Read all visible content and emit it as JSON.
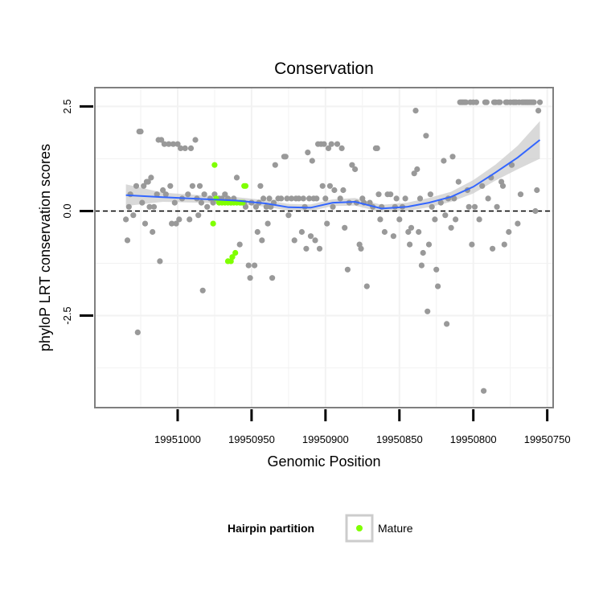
{
  "chart_data": {
    "type": "scatter",
    "title": "Conservation",
    "xlabel": "Genomic Position",
    "ylabel": "phyloP LRT conservation scores",
    "x_reversed": true,
    "xlim": [
      19951056,
      19950746
    ],
    "ylim": [
      -4.7,
      2.95
    ],
    "x_ticks": [
      19951000,
      19950950,
      19950900,
      19950850,
      19950800,
      19950750
    ],
    "x_tick_labels": [
      "19951000",
      "19950950",
      "19950900",
      "19950850",
      "19950800",
      "19950750"
    ],
    "y_ticks": [
      2.5,
      0,
      -2.5
    ],
    "y_tick_labels": [
      "2.5",
      "0.0",
      "-2.5"
    ],
    "reference_line": 0,
    "legend": {
      "title": "Hairpin partition",
      "entries": [
        "Mature"
      ],
      "position": "bottom"
    },
    "colors": {
      "other": "#999999",
      "mature": "#7fff00",
      "smooth": "#3366ff",
      "ribbon": "#cccccc",
      "grid": "#f2f2f2",
      "panel_border": "#7f7f7f"
    },
    "series": [
      {
        "name": "Other",
        "points": [
          [
            19951035,
            -0.2
          ],
          [
            19951034,
            -0.7
          ],
          [
            19951033,
            0.1
          ],
          [
            19951032,
            0.4
          ],
          [
            19951030,
            -0.1
          ],
          [
            19951028,
            0.6
          ],
          [
            19951027,
            -2.9
          ],
          [
            19951026,
            1.9
          ],
          [
            19951025,
            1.9
          ],
          [
            19951024,
            0.2
          ],
          [
            19951023,
            0.6
          ],
          [
            19951022,
            -0.3
          ],
          [
            19951021,
            0.7
          ],
          [
            19951020,
            0.7
          ],
          [
            19951019,
            0.1
          ],
          [
            19951018,
            0.8
          ],
          [
            19951017,
            -0.5
          ],
          [
            19951016,
            0.1
          ],
          [
            19951014,
            0.4
          ],
          [
            19951013,
            1.7
          ],
          [
            19951012,
            -1.2
          ],
          [
            19951011,
            1.7
          ],
          [
            19951010,
            0.5
          ],
          [
            19951009,
            1.6
          ],
          [
            19951008,
            0.4
          ],
          [
            19951006,
            1.6
          ],
          [
            19951005,
            0.6
          ],
          [
            19951004,
            -0.3
          ],
          [
            19951003,
            1.6
          ],
          [
            19951002,
            0.2
          ],
          [
            19951001,
            -0.3
          ],
          [
            19951000,
            1.6
          ],
          [
            19950999,
            -0.2
          ],
          [
            19950998,
            1.5
          ],
          [
            19950997,
            0.3
          ],
          [
            19950995,
            1.5
          ],
          [
            19950993,
            0.4
          ],
          [
            19950992,
            -0.2
          ],
          [
            19950991,
            1.5
          ],
          [
            19950990,
            0.6
          ],
          [
            19950988,
            1.7
          ],
          [
            19950987,
            0.3
          ],
          [
            19950986,
            -0.1
          ],
          [
            19950985,
            0.6
          ],
          [
            19950984,
            0.2
          ],
          [
            19950983,
            -1.9
          ],
          [
            19950982,
            0.4
          ],
          [
            19950980,
            0.1
          ],
          [
            19950978,
            0.3
          ],
          [
            19950976,
            0.2
          ],
          [
            19950975,
            0.4
          ],
          [
            19950972,
            0.3
          ],
          [
            19950970,
            0.3
          ],
          [
            19950968,
            0.4
          ],
          [
            19950966,
            0.3
          ],
          [
            19950964,
            0.2
          ],
          [
            19950962,
            0.3
          ],
          [
            19950960,
            0.8
          ],
          [
            19950958,
            -0.8
          ],
          [
            19950957,
            0.2
          ],
          [
            19950955,
            0.2
          ],
          [
            19950954,
            0.1
          ],
          [
            19950952,
            -1.3
          ],
          [
            19950951,
            -1.6
          ],
          [
            19950950,
            0.2
          ],
          [
            19950948,
            -1.3
          ],
          [
            19950947,
            0.1
          ],
          [
            19950946,
            -0.5
          ],
          [
            19950945,
            0.2
          ],
          [
            19950944,
            0.6
          ],
          [
            19950943,
            -0.7
          ],
          [
            19950942,
            0.3
          ],
          [
            19950940,
            0.1
          ],
          [
            19950939,
            -0.3
          ],
          [
            19950938,
            0.3
          ],
          [
            19950937,
            0.1
          ],
          [
            19950936,
            -1.6
          ],
          [
            19950935,
            0.2
          ],
          [
            19950934,
            1.1
          ],
          [
            19950932,
            0.3
          ],
          [
            19950930,
            0.3
          ],
          [
            19950928,
            1.3
          ],
          [
            19950927,
            1.3
          ],
          [
            19950926,
            0.3
          ],
          [
            19950925,
            -0.1
          ],
          [
            19950923,
            0.3
          ],
          [
            19950921,
            -0.7
          ],
          [
            19950920,
            0.3
          ],
          [
            19950918,
            0.3
          ],
          [
            19950916,
            -0.5
          ],
          [
            19950915,
            0.3
          ],
          [
            19950914,
            0.1
          ],
          [
            19950913,
            -0.9
          ],
          [
            19950912,
            1.4
          ],
          [
            19950911,
            0.3
          ],
          [
            19950910,
            -0.6
          ],
          [
            19950909,
            1.2
          ],
          [
            19950908,
            0.3
          ],
          [
            19950907,
            -0.7
          ],
          [
            19950906,
            0.3
          ],
          [
            19950905,
            1.6
          ],
          [
            19950904,
            -0.9
          ],
          [
            19950903,
            1.6
          ],
          [
            19950902,
            0.6
          ],
          [
            19950901,
            1.6
          ],
          [
            19950900,
            0.3
          ],
          [
            19950899,
            -0.3
          ],
          [
            19950898,
            1.5
          ],
          [
            19950897,
            0.6
          ],
          [
            19950896,
            1.6
          ],
          [
            19950895,
            0.1
          ],
          [
            19950894,
            0.5
          ],
          [
            19950892,
            1.6
          ],
          [
            19950890,
            0.3
          ],
          [
            19950889,
            1.5
          ],
          [
            19950888,
            0.5
          ],
          [
            19950887,
            -0.4
          ],
          [
            19950885,
            -1.4
          ],
          [
            19950884,
            0.2
          ],
          [
            19950882,
            1.1
          ],
          [
            19950880,
            1.0
          ],
          [
            19950879,
            0.2
          ],
          [
            19950877,
            -0.8
          ],
          [
            19950876,
            -0.9
          ],
          [
            19950875,
            0.3
          ],
          [
            19950874,
            0.2
          ],
          [
            19950872,
            -1.8
          ],
          [
            19950870,
            0.2
          ],
          [
            19950868,
            0.1
          ],
          [
            19950866,
            1.5
          ],
          [
            19950865,
            1.5
          ],
          [
            19950864,
            0.4
          ],
          [
            19950863,
            -0.2
          ],
          [
            19950862,
            0.1
          ],
          [
            19950860,
            -0.5
          ],
          [
            19950858,
            0.4
          ],
          [
            19950856,
            0.4
          ],
          [
            19950854,
            -0.6
          ],
          [
            19950853,
            0.1
          ],
          [
            19950852,
            0.3
          ],
          [
            19950850,
            -0.2
          ],
          [
            19950848,
            0.1
          ],
          [
            19950846,
            0.3
          ],
          [
            19950844,
            -0.5
          ],
          [
            19950843,
            -0.8
          ],
          [
            19950842,
            -0.4
          ],
          [
            19950840,
            0.9
          ],
          [
            19950839,
            2.4
          ],
          [
            19950838,
            1.0
          ],
          [
            19950837,
            -0.5
          ],
          [
            19950836,
            0.3
          ],
          [
            19950835,
            -1.3
          ],
          [
            19950834,
            -1.0
          ],
          [
            19950832,
            1.8
          ],
          [
            19950831,
            -2.4
          ],
          [
            19950830,
            -0.8
          ],
          [
            19950829,
            0.4
          ],
          [
            19950828,
            0.1
          ],
          [
            19950826,
            -0.2
          ],
          [
            19950825,
            -1.4
          ],
          [
            19950824,
            -1.8
          ],
          [
            19950822,
            0.2
          ],
          [
            19950820,
            1.2
          ],
          [
            19950819,
            -0.1
          ],
          [
            19950818,
            -2.7
          ],
          [
            19950817,
            0.3
          ],
          [
            19950815,
            -0.4
          ],
          [
            19950814,
            1.3
          ],
          [
            19950813,
            0.3
          ],
          [
            19950812,
            -0.2
          ],
          [
            19950810,
            0.7
          ],
          [
            19950809,
            2.6
          ],
          [
            19950808,
            2.6
          ],
          [
            19950807,
            2.6
          ],
          [
            19950806,
            2.6
          ],
          [
            19950805,
            2.6
          ],
          [
            19950804,
            0.5
          ],
          [
            19950803,
            0.1
          ],
          [
            19950802,
            2.6
          ],
          [
            19950801,
            -0.8
          ],
          [
            19950800,
            2.6
          ],
          [
            19950799,
            0.1
          ],
          [
            19950798,
            2.6
          ],
          [
            19950796,
            -0.2
          ],
          [
            19950794,
            0.6
          ],
          [
            19950793,
            -4.3
          ],
          [
            19950792,
            2.6
          ],
          [
            19950791,
            2.6
          ],
          [
            19950790,
            0.3
          ],
          [
            19950788,
            0.8
          ],
          [
            19950787,
            -0.9
          ],
          [
            19950786,
            2.6
          ],
          [
            19950785,
            2.6
          ],
          [
            19950784,
            0.1
          ],
          [
            19950783,
            2.6
          ],
          [
            19950782,
            2.6
          ],
          [
            19950781,
            0.7
          ],
          [
            19950780,
            0.6
          ],
          [
            19950779,
            -0.8
          ],
          [
            19950778,
            2.6
          ],
          [
            19950777,
            2.6
          ],
          [
            19950776,
            -0.5
          ],
          [
            19950775,
            2.6
          ],
          [
            19950774,
            1.1
          ],
          [
            19950773,
            2.6
          ],
          [
            19950772,
            2.6
          ],
          [
            19950771,
            2.6
          ],
          [
            19950770,
            -0.3
          ],
          [
            19950769,
            2.6
          ],
          [
            19950768,
            0.4
          ],
          [
            19950767,
            2.6
          ],
          [
            19950766,
            2.6
          ],
          [
            19950765,
            2.6
          ],
          [
            19950764,
            2.6
          ],
          [
            19950763,
            2.6
          ],
          [
            19950762,
            2.6
          ],
          [
            19950761,
            2.6
          ],
          [
            19950760,
            2.6
          ],
          [
            19950759,
            2.6
          ],
          [
            19950758,
            0.0
          ],
          [
            19950757,
            0.5
          ],
          [
            19950756,
            2.4
          ],
          [
            19950755,
            2.6
          ]
        ]
      },
      {
        "name": "Mature",
        "points": [
          [
            19950975,
            1.1
          ],
          [
            19950976,
            -0.3
          ],
          [
            19950974,
            0.3
          ],
          [
            19950972,
            0.2
          ],
          [
            19950970,
            0.2
          ],
          [
            19950968,
            0.2
          ],
          [
            19950966,
            0.2
          ],
          [
            19950964,
            0.2
          ],
          [
            19950962,
            0.2
          ],
          [
            19950960,
            0.2
          ],
          [
            19950958,
            0.2
          ],
          [
            19950956,
            0.2
          ],
          [
            19950966,
            -1.2
          ],
          [
            19950964,
            -1.2
          ],
          [
            19950963,
            -1.1
          ],
          [
            19950961,
            -1.0
          ],
          [
            19950955,
            0.6
          ],
          [
            19950954,
            0.6
          ]
        ]
      }
    ],
    "smooth": {
      "method": "loess",
      "x": [
        19951035,
        19951010,
        19950985,
        19950960,
        19950940,
        19950925,
        19950910,
        19950895,
        19950880,
        19950862,
        19950845,
        19950830,
        19950815,
        19950800,
        19950785,
        19950770,
        19950755
      ],
      "y": [
        0.38,
        0.33,
        0.29,
        0.25,
        0.18,
        0.09,
        0.08,
        0.2,
        0.22,
        0.06,
        0.1,
        0.2,
        0.34,
        0.58,
        0.92,
        1.28,
        1.7
      ],
      "lower": [
        0.12,
        0.22,
        0.2,
        0.17,
        0.1,
        0.01,
        0.0,
        0.12,
        0.13,
        -0.03,
        0.0,
        0.09,
        0.22,
        0.42,
        0.73,
        1.0,
        1.25
      ],
      "upper": [
        0.64,
        0.44,
        0.38,
        0.33,
        0.26,
        0.17,
        0.16,
        0.28,
        0.31,
        0.15,
        0.2,
        0.31,
        0.46,
        0.74,
        1.11,
        1.56,
        2.15
      ]
    }
  }
}
